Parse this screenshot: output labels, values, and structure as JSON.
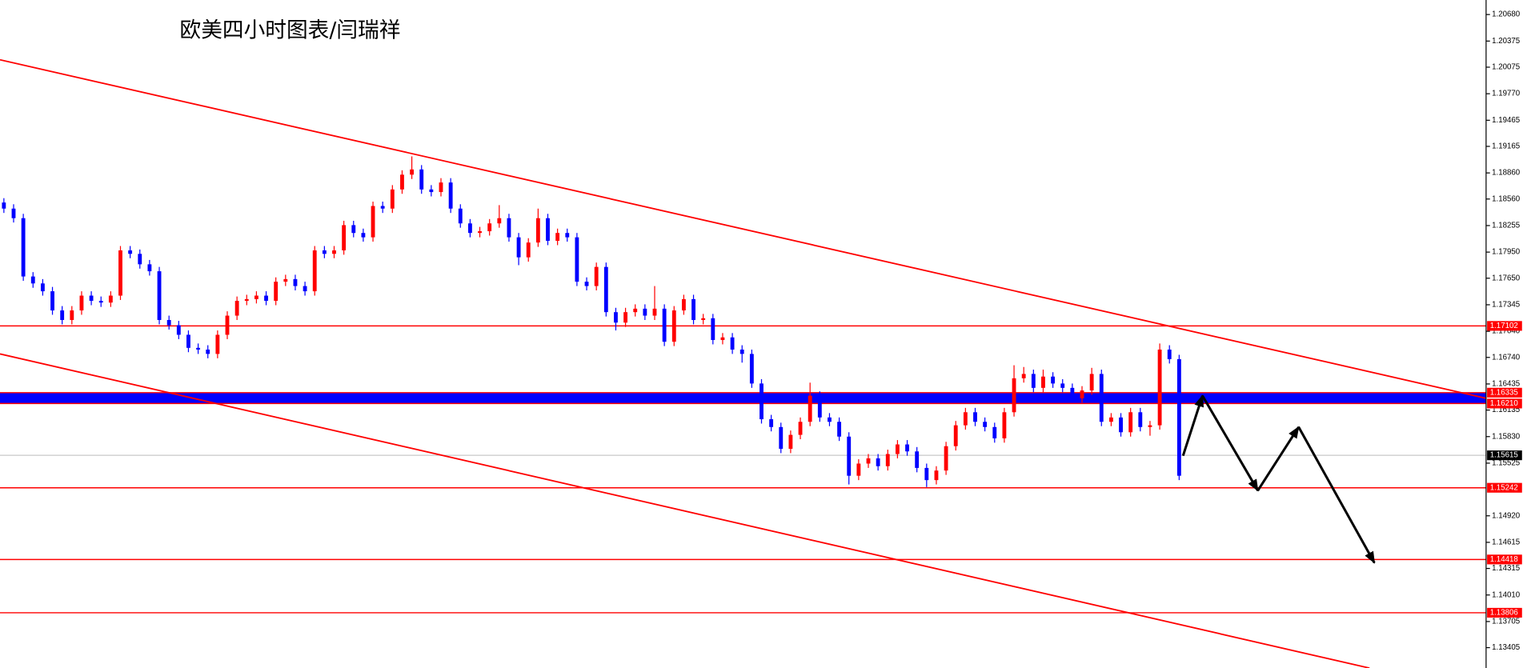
{
  "chart_data": {
    "type": "candlestick",
    "title": "欧美四小时图表/闫瑞祥",
    "ylim": [
      1.13171,
      1.20847
    ],
    "yticks": [
      {
        "value": 1.2068,
        "label": "1.20680"
      },
      1.20375,
      1.20075,
      {
        "value": 1.1977,
        "label": "1.19770"
      },
      1.19465,
      1.19165,
      {
        "value": 1.1886,
        "label": "1.18860"
      },
      {
        "value": 1.1856,
        "label": "1.18560"
      },
      1.18255,
      {
        "value": 1.1795,
        "label": "1.17950"
      },
      {
        "value": 1.1765,
        "label": "1.17650"
      },
      1.17345,
      {
        "value": 1.1704,
        "label": "1.17040"
      },
      {
        "value": 1.1674,
        "label": "1.16740"
      },
      1.16435,
      1.16135,
      {
        "value": 1.1583,
        "label": "1.15830"
      },
      1.15525,
      {
        "value": 1.1492,
        "label": "1.14920"
      },
      1.14615,
      1.14315,
      {
        "value": 1.1401,
        "label": "1.14010"
      },
      1.13705,
      1.13405
    ],
    "up_color": "#ff0000",
    "down_color": "#0000ff",
    "open": [
      1.1852,
      1.1845,
      1.1834,
      1.1767,
      1.1759,
      1.175,
      1.1728,
      1.1717,
      1.1728,
      1.1745,
      1.1739,
      1.1737,
      1.1745,
      1.1797,
      1.1793,
      1.1781,
      1.1773,
      1.1717,
      1.1711,
      1.17,
      1.1685,
      1.1683,
      1.1678,
      1.17,
      1.1722,
      1.1739,
      1.1741,
      1.1745,
      1.1739,
      1.1761,
      1.1764,
      1.1756,
      1.175,
      1.1797,
      1.1793,
      1.1797,
      1.1826,
      1.1817,
      1.1812,
      1.1848,
      1.1845,
      1.1867,
      1.1884,
      1.189,
      1.1867,
      1.1864,
      1.1875,
      1.1845,
      1.1828,
      1.1817,
      1.1819,
      1.1828,
      1.1834,
      1.1812,
      1.1789,
      1.1806,
      1.1834,
      1.1808,
      1.1817,
      1.1812,
      1.1761,
      1.1756,
      1.1778,
      1.1726,
      1.1714,
      1.1726,
      1.173,
      1.1722,
      1.173,
      1.1692,
      1.1728,
      1.1741,
      1.1717,
      1.1719,
      1.1694,
      1.1697,
      1.1683,
      1.1678,
      1.1644,
      1.1603,
      1.1594,
      1.1569,
      1.1585,
      1.16,
      1.163,
      1.1605,
      1.16,
      1.1583,
      1.1538,
      1.1552,
      1.1558,
      1.1549,
      1.1563,
      1.1574,
      1.1566,
      1.1547,
      1.1533,
      1.1544,
      1.1572,
      1.1596,
      1.1611,
      1.16,
      1.1594,
      1.1581,
      1.1611,
      1.165,
      1.1655,
      1.1639,
      1.1652,
      1.1644,
      1.1639,
      1.1627,
      1.1636,
      1.1655,
      1.16,
      1.1605,
      1.1588,
      1.1611,
      1.1594,
      1.1596,
      1.1683,
      1.1672
    ],
    "high": [
      1.1857,
      1.185,
      1.1839,
      1.1772,
      1.1764,
      1.1755,
      1.1733,
      1.1733,
      1.175,
      1.175,
      1.1744,
      1.175,
      1.1802,
      1.1802,
      1.1798,
      1.1786,
      1.1778,
      1.1722,
      1.1716,
      1.1705,
      1.169,
      1.1688,
      1.1705,
      1.1727,
      1.1744,
      1.1746,
      1.175,
      1.175,
      1.1766,
      1.1769,
      1.1769,
      1.1761,
      1.1802,
      1.1802,
      1.1802,
      1.1831,
      1.1831,
      1.1822,
      1.1853,
      1.1853,
      1.1872,
      1.1889,
      1.1905,
      1.1895,
      1.1872,
      1.188,
      1.188,
      1.185,
      1.1833,
      1.1824,
      1.1833,
      1.1849,
      1.1839,
      1.1817,
      1.1811,
      1.1845,
      1.1839,
      1.1822,
      1.1822,
      1.1817,
      1.1766,
      1.1783,
      1.1783,
      1.1731,
      1.1731,
      1.1735,
      1.1735,
      1.1756,
      1.1735,
      1.1733,
      1.1746,
      1.1746,
      1.1724,
      1.1724,
      1.1702,
      1.1702,
      1.1688,
      1.1683,
      1.1649,
      1.1608,
      1.1599,
      1.159,
      1.1605,
      1.1645,
      1.1635,
      1.161,
      1.1605,
      1.1588,
      1.1557,
      1.1563,
      1.1563,
      1.1568,
      1.1579,
      1.1579,
      1.1571,
      1.1552,
      1.1549,
      1.1577,
      1.1601,
      1.1616,
      1.1616,
      1.1605,
      1.1599,
      1.1616,
      1.1665,
      1.1663,
      1.166,
      1.166,
      1.1657,
      1.1649,
      1.1644,
      1.1641,
      1.1662,
      1.166,
      1.161,
      1.161,
      1.1616,
      1.1616,
      1.1601,
      1.169,
      1.1688,
      1.1677
    ],
    "low": [
      1.184,
      1.1829,
      1.1762,
      1.1754,
      1.1745,
      1.1723,
      1.1712,
      1.1712,
      1.1723,
      1.1734,
      1.1732,
      1.1732,
      1.174,
      1.1788,
      1.1776,
      1.1768,
      1.1712,
      1.1706,
      1.1695,
      1.168,
      1.1678,
      1.1673,
      1.1673,
      1.1695,
      1.1717,
      1.1734,
      1.1736,
      1.1734,
      1.1734,
      1.1756,
      1.1751,
      1.1745,
      1.1745,
      1.1788,
      1.1788,
      1.1792,
      1.1812,
      1.1807,
      1.1807,
      1.184,
      1.184,
      1.1862,
      1.1879,
      1.1862,
      1.1859,
      1.1859,
      1.184,
      1.1823,
      1.1812,
      1.1812,
      1.1814,
      1.1823,
      1.1807,
      1.178,
      1.1784,
      1.1801,
      1.1803,
      1.1803,
      1.1807,
      1.1756,
      1.1751,
      1.1751,
      1.1721,
      1.1705,
      1.1709,
      1.1721,
      1.1717,
      1.1717,
      1.1687,
      1.1687,
      1.1723,
      1.1712,
      1.1712,
      1.1689,
      1.1689,
      1.1678,
      1.1668,
      1.1639,
      1.1598,
      1.1589,
      1.1564,
      1.1564,
      1.158,
      1.1595,
      1.16,
      1.1595,
      1.1578,
      1.1528,
      1.1533,
      1.1547,
      1.1544,
      1.1544,
      1.1558,
      1.1561,
      1.1542,
      1.1525,
      1.1528,
      1.1539,
      1.1567,
      1.1591,
      1.1595,
      1.1589,
      1.1576,
      1.1576,
      1.1606,
      1.1645,
      1.1634,
      1.1634,
      1.1639,
      1.1634,
      1.1622,
      1.1622,
      1.1631,
      1.1595,
      1.1595,
      1.1583,
      1.1583,
      1.1589,
      1.1584,
      1.1591,
      1.1667,
      1.1533
    ],
    "close": [
      1.1845,
      1.1834,
      1.1767,
      1.1759,
      1.175,
      1.1728,
      1.1717,
      1.1728,
      1.1745,
      1.1739,
      1.1737,
      1.1745,
      1.1797,
      1.1793,
      1.1781,
      1.1773,
      1.1717,
      1.1711,
      1.17,
      1.1685,
      1.1683,
      1.1678,
      1.17,
      1.1722,
      1.1739,
      1.1741,
      1.1745,
      1.1739,
      1.1761,
      1.1764,
      1.1756,
      1.175,
      1.1797,
      1.1793,
      1.1797,
      1.1826,
      1.1817,
      1.1812,
      1.1848,
      1.1845,
      1.1867,
      1.1884,
      1.189,
      1.1867,
      1.1864,
      1.1875,
      1.1845,
      1.1828,
      1.1817,
      1.1819,
      1.1828,
      1.1834,
      1.1812,
      1.1789,
      1.1806,
      1.1834,
      1.1808,
      1.1817,
      1.1812,
      1.1761,
      1.1756,
      1.1778,
      1.1726,
      1.1714,
      1.1726,
      1.173,
      1.1722,
      1.173,
      1.1692,
      1.1728,
      1.1741,
      1.1717,
      1.1719,
      1.1694,
      1.1697,
      1.1683,
      1.1678,
      1.1644,
      1.1603,
      1.1594,
      1.1569,
      1.1585,
      1.16,
      1.163,
      1.1605,
      1.16,
      1.1583,
      1.1538,
      1.1552,
      1.1558,
      1.1549,
      1.1563,
      1.1574,
      1.1566,
      1.1547,
      1.1533,
      1.1544,
      1.1572,
      1.1596,
      1.1611,
      1.16,
      1.1594,
      1.1581,
      1.1611,
      1.165,
      1.1655,
      1.1639,
      1.1652,
      1.1644,
      1.1639,
      1.1627,
      1.1636,
      1.1655,
      1.16,
      1.1605,
      1.1588,
      1.1611,
      1.1594,
      1.1596,
      1.1683,
      1.1672,
      1.1538
    ],
    "levels": [
      {
        "value": 1.17102,
        "color": "#ff0000"
      },
      {
        "value": 1.15242,
        "color": "#ff0000"
      },
      {
        "value": 1.14418,
        "color": "#ff0000"
      },
      {
        "value": 1.13806,
        "color": "#ff0000"
      }
    ],
    "zone": {
      "high": 1.16335,
      "low": {
        "value": 1.1621,
        "label": "1.16210"
      },
      "color": "#0000ff",
      "border_color": "#ff0000"
    },
    "current_price": {
      "value": 1.15615,
      "color": "#c8c8c8",
      "label_color": "#000000"
    },
    "trendlines": [
      {
        "x": [
          -0.4,
          152.6
        ],
        "y": [
          1.2016,
          1.1627
        ],
        "color": "#ff0000"
      },
      {
        "x": [
          -0.4,
          140.6
        ],
        "y": [
          1.1678,
          1.1317
        ],
        "color": "#ff0000"
      }
    ],
    "projection": {
      "x": [
        121.4,
        123.4,
        129.1,
        133.3,
        141.1
      ],
      "y": [
        1.1561,
        1.163,
        1.1521,
        1.1594,
        1.1438
      ],
      "color": "#000000"
    }
  }
}
